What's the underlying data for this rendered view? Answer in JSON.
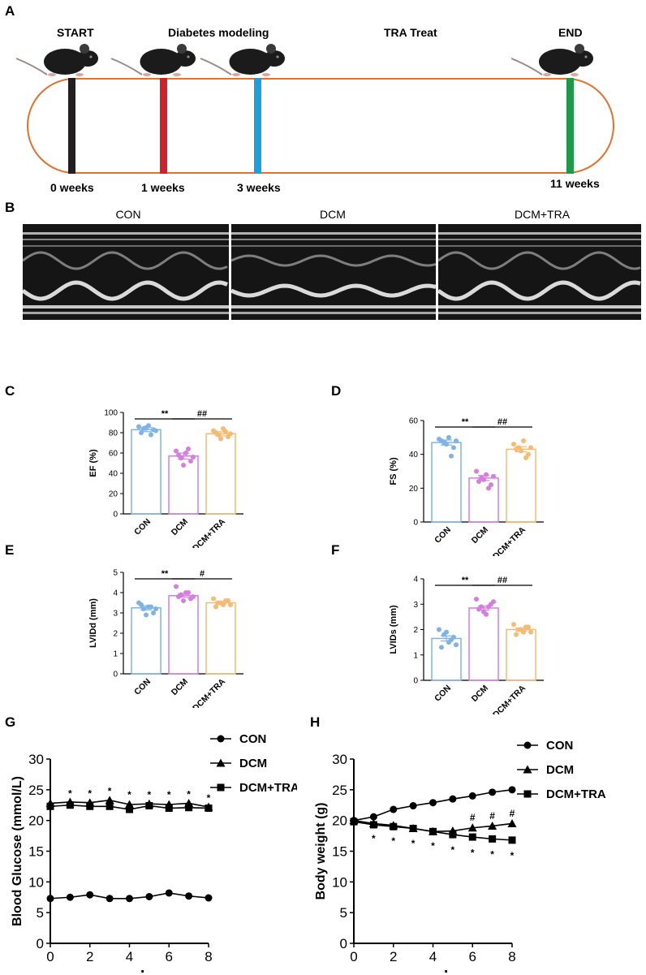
{
  "panels": {
    "a": "A",
    "b": "B",
    "c": "C",
    "d": "D",
    "e": "E",
    "f": "F",
    "g": "G",
    "h": "H"
  },
  "timeline": {
    "stages": [
      {
        "title": "START",
        "week": "0 weeks",
        "color": "#231f20"
      },
      {
        "title": "Diabetes modeling",
        "week": "1 weeks",
        "color": "#d0202e"
      },
      {
        "title": "",
        "week": "3 weeks",
        "color": "#1fa0dd"
      },
      {
        "title": "TRA Treat",
        "week": "",
        "color": ""
      },
      {
        "title": "END",
        "week": "11 weeks",
        "color": "#1c9a47"
      }
    ],
    "track_color": "#e2712c"
  },
  "echo": {
    "titles": [
      "CON",
      "DCM",
      "DCM+TRA"
    ]
  },
  "colors": {
    "con": "#7fb3e8",
    "dcm": "#d67de0",
    "dcmtra": "#f6bb71"
  },
  "bar_charts": [
    {
      "id": "C",
      "ylabel": "EF  (%)",
      "ylim": [
        0,
        100
      ],
      "yticks": [
        0,
        20,
        40,
        60,
        80,
        100
      ],
      "categories": [
        "CON",
        "DCM",
        "DCM+TRA"
      ],
      "values": [
        83,
        57,
        79
      ],
      "sem": [
        2,
        3,
        2
      ],
      "points": [
        [
          86,
          84,
          87,
          83,
          80,
          85,
          78,
          82
        ],
        [
          62,
          55,
          60,
          52,
          58,
          48,
          64,
          56
        ],
        [
          82,
          78,
          84,
          76,
          80,
          74,
          81,
          79
        ]
      ],
      "sig": [
        {
          "label": "**",
          "from": 0,
          "to": 1
        },
        {
          "label": "##",
          "from": 1,
          "to": 2
        }
      ]
    },
    {
      "id": "D",
      "ylabel": "FS  (%)",
      "ylim": [
        0,
        60
      ],
      "yticks": [
        0,
        20,
        40,
        60
      ],
      "categories": [
        "CON",
        "DCM",
        "DCM+TRA"
      ],
      "values": [
        47,
        26,
        43
      ],
      "sem": [
        1.5,
        1.5,
        1.5
      ],
      "points": [
        [
          49,
          47,
          50,
          44,
          48,
          46,
          39,
          48
        ],
        [
          30,
          26,
          28,
          22,
          24,
          25,
          20,
          27
        ],
        [
          46,
          44,
          48,
          40,
          43,
          42,
          38,
          44
        ]
      ],
      "sig": [
        {
          "label": "**",
          "from": 0,
          "to": 1
        },
        {
          "label": "##",
          "from": 1,
          "to": 2
        }
      ]
    },
    {
      "id": "E",
      "ylabel": "LVIDd  (mm)",
      "ylim": [
        0,
        5
      ],
      "yticks": [
        0,
        1,
        2,
        3,
        4,
        5
      ],
      "categories": [
        "CON",
        "DCM",
        "DCM+TRA"
      ],
      "values": [
        3.25,
        3.85,
        3.5
      ],
      "sem": [
        0.1,
        0.08,
        0.06
      ],
      "points": [
        [
          3.5,
          3.2,
          3.3,
          3.0,
          3.4,
          2.9,
          3.3,
          3.2
        ],
        [
          4.3,
          3.9,
          4.0,
          3.7,
          3.8,
          3.6,
          4.0,
          3.8
        ],
        [
          3.7,
          3.5,
          3.4,
          3.6,
          3.3,
          3.5,
          3.6,
          3.4
        ]
      ],
      "sig": [
        {
          "label": "**",
          "from": 0,
          "to": 1
        },
        {
          "label": "#",
          "from": 1,
          "to": 2
        }
      ]
    },
    {
      "id": "F",
      "ylabel": "LVIDs  (mm)",
      "ylim": [
        0,
        4
      ],
      "yticks": [
        0,
        1,
        2,
        3,
        4
      ],
      "categories": [
        "CON",
        "DCM",
        "DCM+TRA"
      ],
      "values": [
        1.65,
        2.85,
        2.0
      ],
      "sem": [
        0.1,
        0.08,
        0.06
      ],
      "points": [
        [
          2.0,
          1.8,
          1.5,
          1.7,
          1.3,
          1.9,
          1.6,
          1.4
        ],
        [
          3.2,
          2.9,
          2.6,
          3.0,
          2.8,
          2.7,
          2.9,
          3.1
        ],
        [
          2.2,
          2.0,
          1.9,
          2.1,
          1.8,
          2.0,
          2.1,
          1.9
        ]
      ],
      "sig": [
        {
          "label": "**",
          "from": 0,
          "to": 1
        },
        {
          "label": "##",
          "from": 1,
          "to": 2
        }
      ]
    }
  ],
  "chart_data": [
    {
      "type": "line",
      "title": "",
      "ylabel": "Blood Glucose  (mmol/L)",
      "xlabel": "week",
      "xlim": [
        0,
        8
      ],
      "ylim": [
        0,
        30
      ],
      "xticks": [
        0,
        2,
        4,
        6,
        8
      ],
      "yticks": [
        0,
        5,
        10,
        15,
        20,
        25,
        30
      ],
      "x": [
        0,
        1,
        2,
        3,
        4,
        5,
        6,
        7,
        8
      ],
      "series": [
        {
          "name": "CON",
          "marker": "circle",
          "values": [
            7.3,
            7.5,
            7.9,
            7.3,
            7.3,
            7.6,
            8.2,
            7.7,
            7.4
          ]
        },
        {
          "name": "DCM",
          "marker": "triangle",
          "values": [
            22.8,
            23.0,
            22.9,
            23.3,
            22.6,
            22.7,
            22.6,
            22.8,
            22.2
          ]
        },
        {
          "name": "DCM+TRA",
          "marker": "square",
          "values": [
            22.3,
            22.5,
            22.3,
            22.3,
            21.8,
            22.4,
            22.0,
            22.1,
            22.0
          ]
        }
      ],
      "annotations": [
        {
          "x": 1,
          "y": 24.5,
          "text": "*"
        },
        {
          "x": 2,
          "y": 24.5,
          "text": "*"
        },
        {
          "x": 3,
          "y": 24.9,
          "text": "*"
        },
        {
          "x": 4,
          "y": 24.3,
          "text": "*"
        },
        {
          "x": 5,
          "y": 24.3,
          "text": "*"
        },
        {
          "x": 6,
          "y": 24.3,
          "text": "*"
        },
        {
          "x": 7,
          "y": 24.4,
          "text": "*"
        },
        {
          "x": 8,
          "y": 23.8,
          "text": "*"
        }
      ]
    },
    {
      "type": "line",
      "title": "",
      "ylabel": "Body weight  (g)",
      "xlabel": "week",
      "xlim": [
        0,
        8
      ],
      "ylim": [
        0,
        30
      ],
      "xticks": [
        0,
        2,
        4,
        6,
        8
      ],
      "yticks": [
        0,
        5,
        10,
        15,
        20,
        25,
        30
      ],
      "x": [
        0,
        1,
        2,
        3,
        4,
        5,
        6,
        7,
        8
      ],
      "series": [
        {
          "name": "CON",
          "marker": "circle",
          "values": [
            20.0,
            20.6,
            21.8,
            22.4,
            22.9,
            23.5,
            24.0,
            24.6,
            25.0
          ]
        },
        {
          "name": "DCM",
          "marker": "triangle",
          "values": [
            20.0,
            19.5,
            19.2,
            18.7,
            18.2,
            18.3,
            18.8,
            19.1,
            19.5
          ]
        },
        {
          "name": "DCM+TRA",
          "marker": "square",
          "values": [
            19.8,
            19.3,
            19.0,
            18.7,
            18.2,
            17.7,
            17.3,
            17.0,
            16.8
          ]
        }
      ],
      "annotations": [
        {
          "x": 1,
          "y": 17.2,
          "text": "*"
        },
        {
          "x": 2,
          "y": 16.8,
          "text": "*"
        },
        {
          "x": 3,
          "y": 16.4,
          "text": "*"
        },
        {
          "x": 4,
          "y": 16.0,
          "text": "*"
        },
        {
          "x": 5,
          "y": 15.3,
          "text": "*"
        },
        {
          "x": 6,
          "y": 14.9,
          "text": "*"
        },
        {
          "x": 7,
          "y": 14.6,
          "text": "*"
        },
        {
          "x": 8,
          "y": 14.4,
          "text": "*"
        },
        {
          "x": 6,
          "y": 20.6,
          "text": "#"
        },
        {
          "x": 7,
          "y": 20.9,
          "text": "#"
        },
        {
          "x": 8,
          "y": 21.3,
          "text": "#"
        }
      ]
    }
  ]
}
